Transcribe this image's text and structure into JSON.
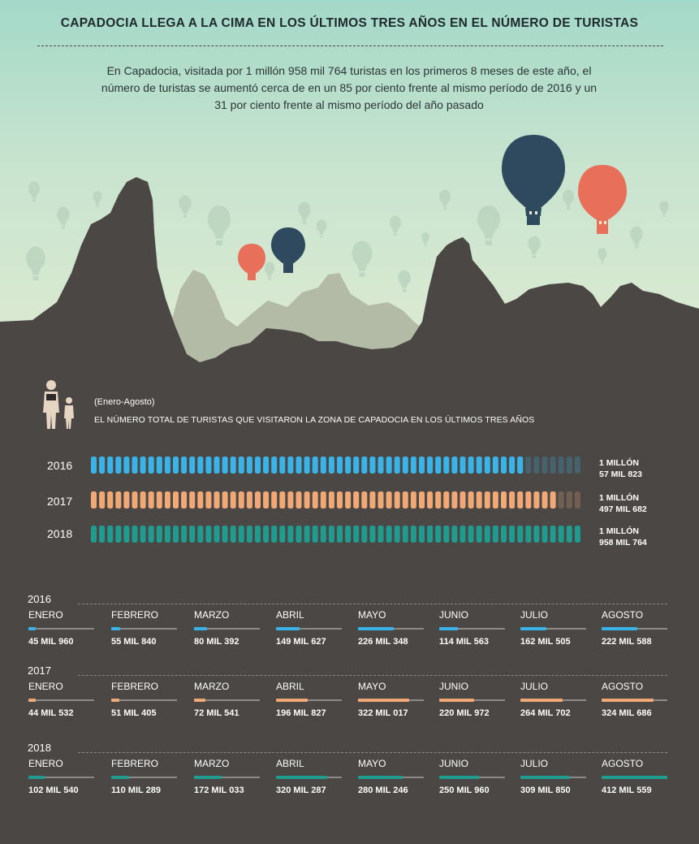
{
  "title": "CAPADOCIA LLEGA A LA CIMA EN LOS ÚLTIMOS TRES AÑOS EN EL NÚMERO DE TURISTAS",
  "intro": "En Capadocia, visitada por 1 millón 958 mil 764 turistas en los primeros 8 meses de este año, el número de turistas se aumentó cerca de en un 85 por ciento frente al mismo período de 2016 y un 31 por ciento frente al mismo período del año pasado",
  "colors": {
    "y2016": "#3ab4e8",
    "y2017": "#f1a877",
    "y2018": "#1f9b8f",
    "dark_bg": "#4a4745",
    "balloon_navy": "#2f4a5e",
    "balloon_red": "#e8705a"
  },
  "chart_data": [
    {
      "type": "bar",
      "title": "EL NÚMERO TOTAL DE TURISTAS QUE VISITARON LA ZONA DE CAPADOCIA EN LOS ÚLTIMOS TRES AÑOS",
      "subtitle": "(Enero-Agosto)",
      "icon": "tourist-family-icon",
      "categories": [
        "2016",
        "2017",
        "2018"
      ],
      "values": [
        1057823,
        1497682,
        1958764
      ],
      "value_labels": [
        [
          "1 MILLÓN",
          "57 MIL 823"
        ],
        [
          "1 MILLÓN",
          "497 MIL 682"
        ],
        [
          "1 MILLÓN",
          "958 MIL 764"
        ]
      ],
      "segments_total": 60,
      "segments_filled": [
        53,
        57,
        60
      ]
    },
    {
      "type": "bar",
      "months": [
        "ENERO",
        "FEBRERO",
        "MARZO",
        "ABRIL",
        "MAYO",
        "JUNIO",
        "JULIO",
        "AGOSTO"
      ],
      "series": [
        {
          "name": "2016",
          "values": [
            45960,
            55840,
            80392,
            149627,
            226348,
            114563,
            162505,
            222588
          ],
          "labels": [
            "45 MIL 960",
            "55 MIL 840",
            "80 MIL 392",
            "149 MIL 627",
            "226 MIL 348",
            "114 MIL 563",
            "162 MIL 505",
            "222 MIL 588"
          ]
        },
        {
          "name": "2017",
          "values": [
            44532,
            51405,
            72541,
            196827,
            322017,
            220972,
            264702,
            324686
          ],
          "labels": [
            "44 MIL 532",
            "51 MIL 405",
            "72 MIL 541",
            "196 MIL 827",
            "322 MIL 017",
            "220 MIL 972",
            "264 MIL 702",
            "324 MIL 686"
          ]
        },
        {
          "name": "2018",
          "values": [
            102540,
            110289,
            172033,
            320287,
            280246,
            250960,
            309850,
            412559
          ],
          "labels": [
            "102 MIL 540",
            "110 MIL 289",
            "172 MIL 033",
            "320 MIL 287",
            "280 MIL 246",
            "250 MIL 960",
            "309 MIL 850",
            "412 MIL 559"
          ]
        }
      ],
      "ylim": [
        0,
        412559
      ]
    }
  ]
}
